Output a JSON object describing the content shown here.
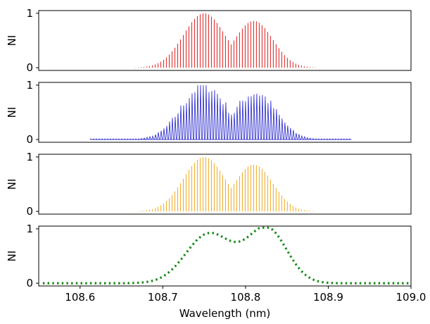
{
  "chart_data": [
    {
      "type": "line",
      "style": "spectral-lines",
      "color": "#e03030",
      "xlim": [
        108.55,
        109.0
      ],
      "ylim": [
        -0.05,
        1.05
      ],
      "ylabel": "NI",
      "yticks": [
        0,
        1
      ],
      "x_start": 108.65,
      "x_end": 108.9,
      "peaks": [
        {
          "center": 108.75,
          "amplitude": 1.0,
          "width": 0.025
        },
        {
          "center": 108.81,
          "amplitude": 0.86,
          "width": 0.023
        }
      ],
      "line_spacing": 0.0034,
      "noise": 0
    },
    {
      "type": "line",
      "style": "spectral-lines",
      "color": "#2222cc",
      "xlim": [
        108.55,
        109.0
      ],
      "ylim": [
        -0.05,
        1.05
      ],
      "ylabel": "NI",
      "yticks": [
        0,
        1
      ],
      "x_start": 108.613,
      "x_end": 108.928,
      "peaks": [
        {
          "center": 108.75,
          "amplitude": 1.0,
          "width": 0.027
        },
        {
          "center": 108.812,
          "amplitude": 0.86,
          "width": 0.025
        }
      ],
      "line_spacing": 0.0034,
      "noise": 0.12
    },
    {
      "type": "line",
      "style": "spectral-lines",
      "color": "#f0b030",
      "xlim": [
        108.55,
        109.0
      ],
      "ylim": [
        -0.05,
        1.05
      ],
      "ylabel": "NI",
      "yticks": [
        0,
        1
      ],
      "x_start": 108.65,
      "x_end": 108.9,
      "peaks": [
        {
          "center": 108.75,
          "amplitude": 1.0,
          "width": 0.025
        },
        {
          "center": 108.81,
          "amplitude": 0.86,
          "width": 0.023
        }
      ],
      "line_spacing": 0.0034,
      "noise": 0
    },
    {
      "type": "line",
      "style": "dotted-envelope",
      "color": "#1a8a1a",
      "xlim": [
        108.55,
        109.0
      ],
      "ylim": [
        -0.05,
        1.05
      ],
      "ylabel": "NI",
      "xlabel": "Wavelength (nm)",
      "yticks": [
        0,
        1
      ],
      "xticks": [
        "108.6",
        "108.7",
        "108.8",
        "108.9",
        "109.0"
      ],
      "xtick_values": [
        108.6,
        108.7,
        108.8,
        108.9,
        109.0
      ],
      "x_start": 108.555,
      "x_end": 108.998,
      "peaks": [
        {
          "center": 108.756,
          "amplitude": 0.91,
          "width": 0.028
        },
        {
          "center": 108.826,
          "amplitude": 1.0,
          "width": 0.024
        }
      ]
    }
  ]
}
